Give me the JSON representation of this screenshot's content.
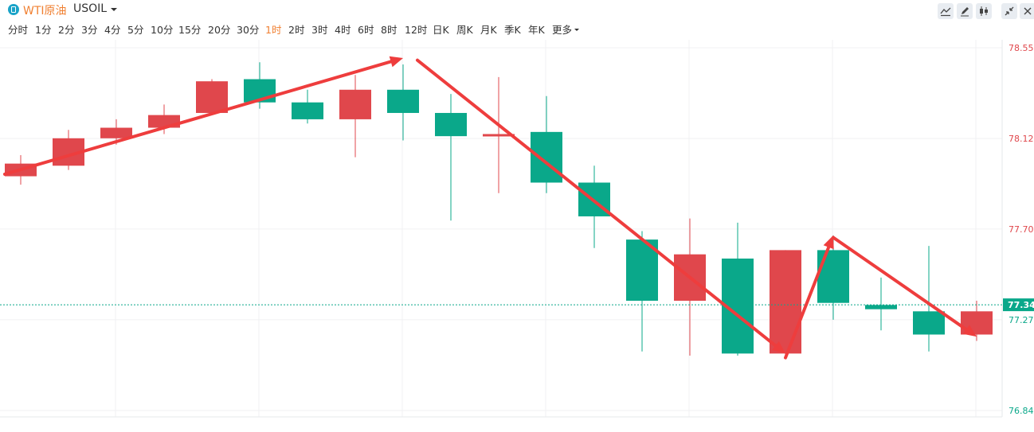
{
  "header": {
    "symbol_name": "WTI原油",
    "symbol_code": "USOIL",
    "symbol_icon": "symbol-badge-icon",
    "tools": [
      "line-tool-icon",
      "pen-tool-icon",
      "candle-style-icon",
      "collapse-icon",
      "close-icon"
    ]
  },
  "periods": [
    "分时",
    "1分",
    "2分",
    "3分",
    "4分",
    "5分",
    "10分",
    "15分",
    "20分",
    "30分",
    "1时",
    "2时",
    "3时",
    "4时",
    "6时",
    "8时",
    "12时",
    "日K",
    "周K",
    "月K",
    "季K",
    "年K",
    "更多"
  ],
  "active_period": "1时",
  "colors": {
    "up": "#e0474c",
    "down": "#0aa88a",
    "arrow": "#ee3d3d",
    "accent": "#f08032"
  },
  "chart_data": {
    "type": "candlestick",
    "y_ticks": [
      "78.559",
      "78.129",
      "77.700",
      "77.270",
      "76.840"
    ],
    "ylim": [
      76.84,
      78.559
    ],
    "last_price": "77.341",
    "grid": true,
    "candles": [
      {
        "open": 77.95,
        "close": 78.01,
        "high": 78.05,
        "low": 77.91,
        "dir": "up"
      },
      {
        "open": 78.0,
        "close": 78.13,
        "high": 78.17,
        "low": 77.98,
        "dir": "up"
      },
      {
        "open": 78.13,
        "close": 78.18,
        "high": 78.22,
        "low": 78.1,
        "dir": "up"
      },
      {
        "open": 78.18,
        "close": 78.24,
        "high": 78.29,
        "low": 78.15,
        "dir": "up"
      },
      {
        "open": 78.25,
        "close": 78.4,
        "high": 78.41,
        "low": 78.25,
        "dir": "up"
      },
      {
        "open": 78.41,
        "close": 78.3,
        "high": 78.49,
        "low": 78.27,
        "dir": "down"
      },
      {
        "open": 78.3,
        "close": 78.22,
        "high": 78.36,
        "low": 78.2,
        "dir": "down"
      },
      {
        "open": 78.22,
        "close": 78.36,
        "high": 78.43,
        "low": 78.04,
        "dir": "up"
      },
      {
        "open": 78.36,
        "close": 78.25,
        "high": 78.48,
        "low": 78.12,
        "dir": "down"
      },
      {
        "open": 78.25,
        "close": 78.14,
        "high": 78.34,
        "low": 77.74,
        "dir": "down"
      },
      {
        "open": 78.14,
        "close": 78.15,
        "high": 78.42,
        "low": 77.87,
        "dir": "up"
      },
      {
        "open": 78.16,
        "close": 77.92,
        "high": 78.33,
        "low": 77.87,
        "dir": "down"
      },
      {
        "open": 77.92,
        "close": 77.76,
        "high": 78.0,
        "low": 77.61,
        "dir": "down"
      },
      {
        "open": 77.65,
        "close": 77.36,
        "high": 77.69,
        "low": 77.12,
        "dir": "down"
      },
      {
        "open": 77.36,
        "close": 77.58,
        "high": 77.75,
        "low": 77.1,
        "dir": "up"
      },
      {
        "open": 77.56,
        "close": 77.11,
        "high": 77.73,
        "low": 77.1,
        "dir": "down"
      },
      {
        "open": 77.11,
        "close": 77.6,
        "high": 77.6,
        "low": 77.09,
        "dir": "up"
      },
      {
        "open": 77.6,
        "close": 77.35,
        "high": 77.67,
        "low": 77.27,
        "dir": "down"
      },
      {
        "open": 77.34,
        "close": 77.32,
        "high": 77.47,
        "low": 77.22,
        "dir": "down"
      },
      {
        "open": 77.31,
        "close": 77.2,
        "high": 77.62,
        "low": 77.12,
        "dir": "down"
      },
      {
        "open": 77.2,
        "close": 77.31,
        "high": 77.36,
        "low": 77.17,
        "dir": "up"
      }
    ],
    "annotation_arrows": [
      {
        "from": {
          "candle": 0,
          "price": 77.96
        },
        "to": {
          "candle": 8,
          "price": 78.51
        },
        "style": "bold"
      },
      {
        "from": {
          "candle": 8.3,
          "price": 78.5
        },
        "to": {
          "candle": 16,
          "price": 77.11
        },
        "style": "bold"
      },
      {
        "from": {
          "candle": 16,
          "price": 77.09
        },
        "to": {
          "candle": 17,
          "price": 77.67
        },
        "style": "bold"
      },
      {
        "from": {
          "candle": 17,
          "price": 77.66
        },
        "to": {
          "candle": 20,
          "price": 77.19
        },
        "style": "bold"
      }
    ]
  }
}
